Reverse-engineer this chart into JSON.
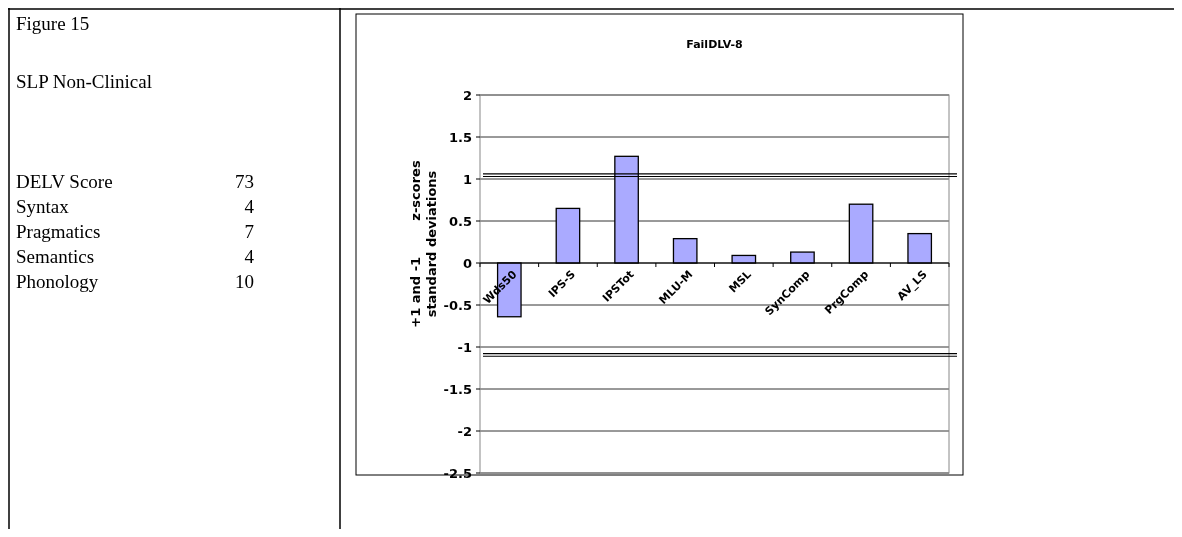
{
  "chart_data": [
    {
      "type": "other",
      "title": "Figure 15",
      "subtitle": "SLP Non-Clinical",
      "categories": [
        "DELV Score",
        "Syntax",
        "Pragmatics",
        "Semantics",
        "Phonology"
      ],
      "values": [
        73,
        4,
        7,
        4,
        10
      ],
      "data_labels": true
    },
    {
      "type": "bar",
      "title": "FailDLV-8",
      "ylabel": "+1 and -1        z-scores\nstandard deviations",
      "categories": [
        "Wds50",
        "IPS-S",
        "IPSTot",
        "MLU-M",
        "MSL",
        "SynComp",
        "PrgComp",
        "AV_LS"
      ],
      "series": [
        {
          "color": "#aaaaff",
          "values": [
            -0.64,
            0.65,
            1.27,
            0.29,
            0.09,
            0.13,
            0.7,
            0.35
          ]
        }
      ],
      "ylim": [
        -2.5,
        2
      ],
      "yticks": [
        -2.5,
        -2,
        -1.5,
        -1,
        -0.5,
        0,
        0.5,
        1,
        1.5,
        2
      ],
      "grid": "y",
      "ref_lines": [
        {
          "axis": "y",
          "value": 1.03,
          "color": "#000000"
        },
        {
          "axis": "y",
          "value": 1.06,
          "color": "#000000"
        },
        {
          "axis": "y",
          "value": -1.08,
          "color": "#000000"
        },
        {
          "axis": "y",
          "value": -1.11,
          "color": "#000000"
        }
      ]
    }
  ]
}
